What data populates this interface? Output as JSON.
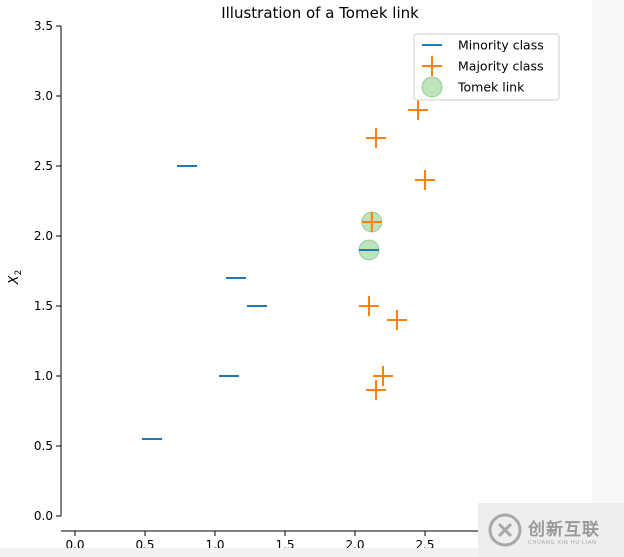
{
  "chart_data": {
    "type": "scatter",
    "title": "Illustration of a Tomek link",
    "xlabel": "",
    "ylabel": "X_2",
    "xlim": [
      -0.1,
      2.9
    ],
    "ylim": [
      0.0,
      3.5
    ],
    "xticks": [
      "0.0",
      "0.5",
      "1.0",
      "1.5",
      "2.0",
      "2.5"
    ],
    "yticks": [
      "0.0",
      "0.5",
      "1.0",
      "1.5",
      "2.0",
      "2.5",
      "3.0",
      "3.5"
    ],
    "grid": false,
    "legend_position": "top-right",
    "series": [
      {
        "name": "Minority class",
        "marker": "hline",
        "color": "#1f77b4",
        "points": [
          [
            0.55,
            0.55
          ],
          [
            1.1,
            1.0
          ],
          [
            1.3,
            1.5
          ],
          [
            1.15,
            1.7
          ],
          [
            0.8,
            2.5
          ],
          [
            2.1,
            1.9
          ]
        ]
      },
      {
        "name": "Majority class",
        "marker": "plus",
        "color": "#ff7f0e",
        "points": [
          [
            2.15,
            0.9
          ],
          [
            2.2,
            1.0
          ],
          [
            2.3,
            1.4
          ],
          [
            2.1,
            1.5
          ],
          [
            2.12,
            2.1
          ],
          [
            2.5,
            2.4
          ],
          [
            2.15,
            2.7
          ],
          [
            2.45,
            2.9
          ]
        ]
      },
      {
        "name": "Tomek link",
        "marker": "circle",
        "color": "#2ca02c",
        "alpha": 0.3,
        "points": [
          [
            2.1,
            1.9
          ],
          [
            2.12,
            2.1
          ]
        ]
      }
    ]
  },
  "watermark": {
    "text": "创新互联",
    "subtext": "CHUANG XIN HU LIAN"
  }
}
